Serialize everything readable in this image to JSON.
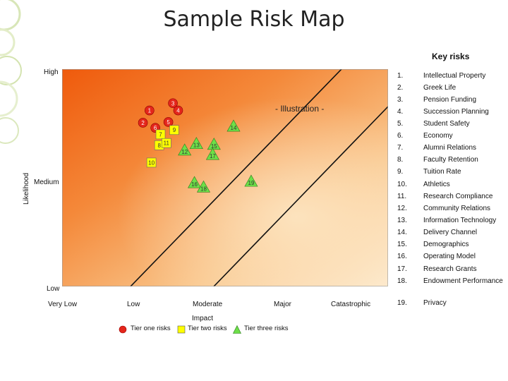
{
  "title": "Sample Risk Map",
  "key_title": "Key risks",
  "illustration_label": "- Illustration -",
  "colors": {
    "tier1": "#e4261b",
    "tier2": "#ffff00",
    "tier3": "#6ddf48",
    "bg_dark": "#f26a10",
    "bg_light": "#fde6c3"
  },
  "chart_data": {
    "type": "scatter",
    "title": "Sample Risk Map",
    "xlabel": "Impact",
    "ylabel": "Likelihood",
    "x_categories": [
      "Very Low",
      "Low",
      "Moderate",
      "Major",
      "Catastrophic"
    ],
    "y_levels": [
      "Low",
      "Medium",
      "High"
    ],
    "xlim": [
      0,
      5
    ],
    "ylim": [
      0,
      3
    ],
    "series": [
      {
        "name": "Tier one risks",
        "marker": "circle",
        "points": [
          {
            "id": "1",
            "x": 1.34,
            "y": 2.43
          },
          {
            "id": "2",
            "x": 1.24,
            "y": 2.26
          },
          {
            "id": "3",
            "x": 1.7,
            "y": 2.53
          },
          {
            "id": "4",
            "x": 1.78,
            "y": 2.43
          },
          {
            "id": "5",
            "x": 1.63,
            "y": 2.27
          },
          {
            "id": "6",
            "x": 1.43,
            "y": 2.19
          }
        ]
      },
      {
        "name": "Tier two risks",
        "marker": "square",
        "points": [
          {
            "id": "7",
            "x": 1.51,
            "y": 2.1
          },
          {
            "id": "8",
            "x": 1.49,
            "y": 1.95
          },
          {
            "id": "9",
            "x": 1.72,
            "y": 2.16
          },
          {
            "id": "10",
            "x": 1.37,
            "y": 1.71
          },
          {
            "id": "11",
            "x": 1.6,
            "y": 1.98
          }
        ]
      },
      {
        "name": "Tier three risks",
        "marker": "triangle",
        "points": [
          {
            "id": "12",
            "x": 1.88,
            "y": 1.88
          },
          {
            "id": "13",
            "x": 2.06,
            "y": 1.97
          },
          {
            "id": "14",
            "x": 2.63,
            "y": 2.21
          },
          {
            "id": "15",
            "x": 2.33,
            "y": 1.96
          },
          {
            "id": "16",
            "x": 2.03,
            "y": 1.43
          },
          {
            "id": "17",
            "x": 2.31,
            "y": 1.82
          },
          {
            "id": "18",
            "x": 2.17,
            "y": 1.37
          },
          {
            "id": "19",
            "x": 2.9,
            "y": 1.45
          }
        ]
      }
    ]
  },
  "key_risks": [
    {
      "num": "1.",
      "label": "Intellectual Property"
    },
    {
      "num": "2.",
      "label": "Greek Life"
    },
    {
      "num": "3.",
      "label": "Pension Funding"
    },
    {
      "num": "4.",
      "label": "Succession Planning"
    },
    {
      "num": "5.",
      "label": "Student Safety"
    },
    {
      "num": "6.",
      "label": "Economy"
    },
    {
      "num": "7.",
      "label": "Alumni Relations"
    },
    {
      "num": "8.",
      "label": "Faculty Retention"
    },
    {
      "num": "9.",
      "label": "Tuition Rate"
    },
    {
      "num": "10.",
      "label": "Athletics"
    },
    {
      "num": "11.",
      "label": "Research Compliance"
    },
    {
      "num": "12.",
      "label": "Community Relations"
    },
    {
      "num": "13.",
      "label": "Information Technology"
    },
    {
      "num": "14.",
      "label": "Delivery Channel"
    },
    {
      "num": "15.",
      "label": "Demographics"
    },
    {
      "num": "16.",
      "label": "Operating Model"
    },
    {
      "num": "17.",
      "label": "Research Grants"
    },
    {
      "num": "18.",
      "label": "Endowment Performance"
    },
    {
      "num": "19.",
      "label": "Privacy"
    }
  ]
}
